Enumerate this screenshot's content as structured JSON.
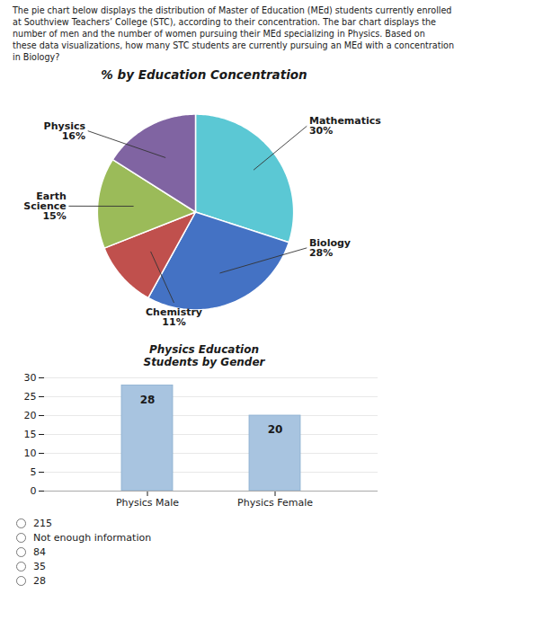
{
  "title": "The pie chart below displays the distribution of Master of Education (MEd) students currently enrolled\nat Southview Teachers’ College (STC), according to their concentration. The bar chart displays the\nnumber of men and the number of women pursuing their MEd specializing in Physics. Based on\nthese data visualizations, how many STC students are currently pursuing an MEd with a concentration\nin Biology?",
  "annotations": [
    "215",
    "Not enough information",
    "84",
    "35",
    "28"
  ],
  "chart_data": [
    {
      "type": "pie",
      "title": "% by Education Concentration",
      "categories": [
        "Mathematics",
        "Biology",
        "Chemistry",
        "Earth Science",
        "Physics"
      ],
      "values": [
        30,
        28,
        11,
        15,
        16
      ],
      "value_labels": [
        "30%",
        "28%",
        "11%",
        "15%",
        "16%"
      ],
      "colors": [
        "#5BC8D4",
        "#4472C4",
        "#C0504D",
        "#9BBB59",
        "#8064A2"
      ],
      "data_labels": true
    },
    {
      "type": "bar",
      "title": "Physics Education\nStudents by Gender",
      "categories": [
        "Physics Male",
        "Physics Female"
      ],
      "values": [
        28,
        20
      ],
      "color": "#A8C4E0",
      "ylim": [
        0,
        30
      ],
      "yticks": [
        0,
        5,
        10,
        15,
        20,
        25,
        30
      ],
      "grid": true,
      "data_labels": true
    }
  ]
}
